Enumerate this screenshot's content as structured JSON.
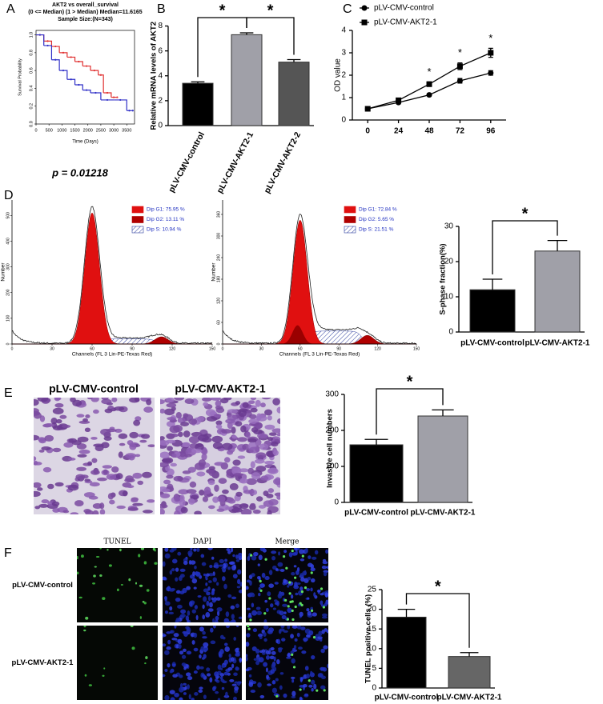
{
  "figure": {
    "panel_labels": [
      "A",
      "B",
      "C",
      "D",
      "E",
      "F"
    ],
    "e_image_labels": [
      "pLV-CMV-control",
      "pLV-CMV-AKT2-1"
    ],
    "f_column_labels": [
      "TUNEL",
      "DAPI",
      "Merge"
    ],
    "f_row_labels": [
      "pLV-CMV-control",
      "pLV-CMV-AKT2-1"
    ]
  },
  "chart_data": [
    {
      "type": "survival",
      "title": "AKT2 vs overall_survival",
      "subtitle": "(0 <= Median) (1 > Median) Median=11.6165",
      "note": "Sample Size:(N=343)",
      "xlabel": "Time (Days)",
      "ylabel": "Survival Probability",
      "annotation": "p = 0.01218",
      "xlim": [
        0,
        3800
      ],
      "xticks": [
        0,
        500,
        1000,
        1500,
        2000,
        2500,
        3000,
        3500
      ],
      "ylim": [
        0,
        1.05
      ],
      "yticks": [
        {
          "value": 0,
          "label": "0.0"
        },
        {
          "value": 0.2,
          "label": "0.2"
        },
        {
          "value": 0.4,
          "label": "0.4"
        },
        {
          "value": 0.6,
          "label": "0.6"
        },
        {
          "value": 0.8,
          "label": "0.8"
        },
        {
          "value": 1,
          "label": "1.0"
        }
      ],
      "series": [
        {
          "color": "#e03030",
          "x": [
            0,
            300,
            600,
            900,
            1200,
            1500,
            1800,
            2100,
            2400,
            2600,
            2900,
            3100
          ],
          "values": [
            1,
            0.93,
            0.87,
            0.8,
            0.75,
            0.7,
            0.65,
            0.6,
            0.55,
            0.35,
            0.3,
            0.3
          ]
        },
        {
          "color": "#3030c8",
          "x": [
            0,
            300,
            600,
            900,
            1200,
            1500,
            1800,
            2100,
            2500,
            3000,
            3500,
            3700
          ],
          "values": [
            1,
            0.88,
            0.72,
            0.6,
            0.5,
            0.44,
            0.38,
            0.35,
            0.27,
            0.27,
            0.15,
            0.15
          ]
        }
      ]
    },
    {
      "type": "bar",
      "ylabel": "Relative mRNA levels of AKT2",
      "categories": [
        "pLV-CMV-control",
        "pLV-CMV-AKT2-1",
        "pLV-CMV-AKT2-2"
      ],
      "values": [
        3.4,
        7.3,
        5.1
      ],
      "errors": [
        0.12,
        0.15,
        0.2
      ],
      "colors": [
        "#000000",
        "#a0a0a8",
        "#555555"
      ],
      "ylim": [
        0,
        8
      ],
      "yticks": [
        0,
        2,
        4,
        6,
        8
      ],
      "annotations": [
        "*",
        "*"
      ]
    },
    {
      "type": "line",
      "ylabel": "OD value",
      "x": [
        0,
        24,
        48,
        72,
        96
      ],
      "xlim": [
        -12,
        108
      ],
      "xticks": [
        0,
        24,
        48,
        72,
        96
      ],
      "ylim": [
        0,
        4
      ],
      "yticks": [
        0,
        1,
        2,
        3,
        4
      ],
      "series": [
        {
          "name": "pLV-CMV-control",
          "color": "#000000",
          "marker": "circle",
          "values": [
            0.5,
            0.78,
            1.12,
            1.75,
            2.1
          ],
          "errors": [
            0.03,
            0.05,
            0.05,
            0.1,
            0.1
          ]
        },
        {
          "name": "pLV-CMV-AKT2-1",
          "color": "#000000",
          "marker": "square",
          "values": [
            0.5,
            0.88,
            1.6,
            2.4,
            3.0
          ],
          "errors": [
            0.03,
            0.08,
            0.1,
            0.15,
            0.2
          ]
        }
      ],
      "annotations": [
        "*",
        "*",
        "*"
      ]
    },
    {
      "type": "flow",
      "xlabel": "Channels (FL 3 Lin-PE-Texas Red)",
      "ylabel": "Number",
      "xlim": [
        0,
        150
      ],
      "xticks": [
        0,
        30,
        60,
        90,
        120,
        150
      ],
      "ylim": [
        0,
        560
      ],
      "yticks": [
        0,
        100,
        200,
        300,
        400,
        500
      ],
      "legend": [
        {
          "label": "Dip G1: 75.95 %",
          "color": "#e01010"
        },
        {
          "label": "Dip G2: 13.11 %",
          "color": "#b00000"
        },
        {
          "label": "Dip S: 10.94 %",
          "color": "#3040a0"
        }
      ]
    },
    {
      "type": "flow",
      "xlabel": "Channels (FL 3 Lin-PE-Texas Red)",
      "ylabel": "Number",
      "xlim": [
        0,
        150
      ],
      "xticks": [
        0,
        30,
        60,
        90,
        120,
        150
      ],
      "ylim": [
        0,
        400
      ],
      "yticks": [
        0,
        60,
        120,
        180,
        240,
        300,
        360
      ],
      "legend": [
        {
          "label": "Dip G1: 72.84 %",
          "color": "#e01010"
        },
        {
          "label": "Dip G2: 5.65 %",
          "color": "#b00000"
        },
        {
          "label": "Dip S: 21.51 %",
          "color": "#3040a0"
        }
      ]
    },
    {
      "type": "bar",
      "ylabel": "S-phase fraction(%)",
      "categories": [
        "pLV-CMV-control",
        "pLV-CMV-AKT2-1"
      ],
      "values": [
        12,
        23
      ],
      "errors": [
        3,
        3
      ],
      "colors": [
        "#000000",
        "#a0a0a8"
      ],
      "ylim": [
        0,
        30
      ],
      "yticks": [
        0,
        10,
        20,
        30
      ],
      "annotations": [
        "*"
      ]
    },
    {
      "type": "bar",
      "ylabel": "Invasive cell numbers",
      "categories": [
        "pLV-CMV-control",
        "pLV-CMV-AKT2-1"
      ],
      "values": [
        160,
        240
      ],
      "errors": [
        15,
        17
      ],
      "colors": [
        "#000000",
        "#a0a0a8"
      ],
      "ylim": [
        0,
        300
      ],
      "yticks": [
        0,
        100,
        200,
        300
      ],
      "annotations": [
        "*"
      ]
    },
    {
      "type": "bar",
      "ylabel": "TUNEL positive cells (%)",
      "categories": [
        "pLV-CMV-control",
        "pLV-CMV-AKT2-1"
      ],
      "values": [
        18,
        8
      ],
      "errors": [
        2,
        1
      ],
      "colors": [
        "#000000",
        "#666666"
      ],
      "ylim": [
        0,
        25
      ],
      "yticks": [
        0,
        5,
        10,
        15,
        20,
        25
      ],
      "annotations": [
        "*"
      ]
    }
  ]
}
